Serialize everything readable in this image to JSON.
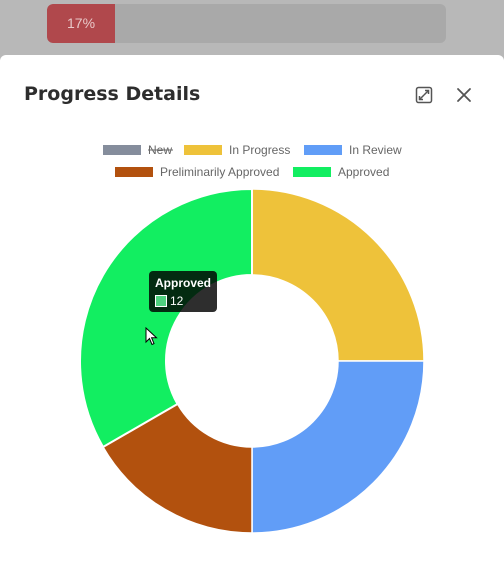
{
  "background": {
    "progress_label": "17%",
    "progress_fraction": 0.17
  },
  "modal": {
    "title": "Progress Details"
  },
  "tooltip": {
    "title": "Approved",
    "value": "12"
  },
  "colors": {
    "New": "#858d9c",
    "In Progress": "#eec23a",
    "In Review": "#619df7",
    "Preliminarily Approved": "#b2510e",
    "Approved": "#12ee61"
  },
  "chart_data": {
    "type": "pie",
    "variant": "doughnut",
    "legend_position": "top",
    "categories": [
      "New",
      "In Progress",
      "In Review",
      "Preliminarily Approved",
      "Approved"
    ],
    "values": [
      0,
      9,
      9,
      6,
      12
    ],
    "hidden": [
      "New"
    ],
    "highlighted": "Approved"
  }
}
